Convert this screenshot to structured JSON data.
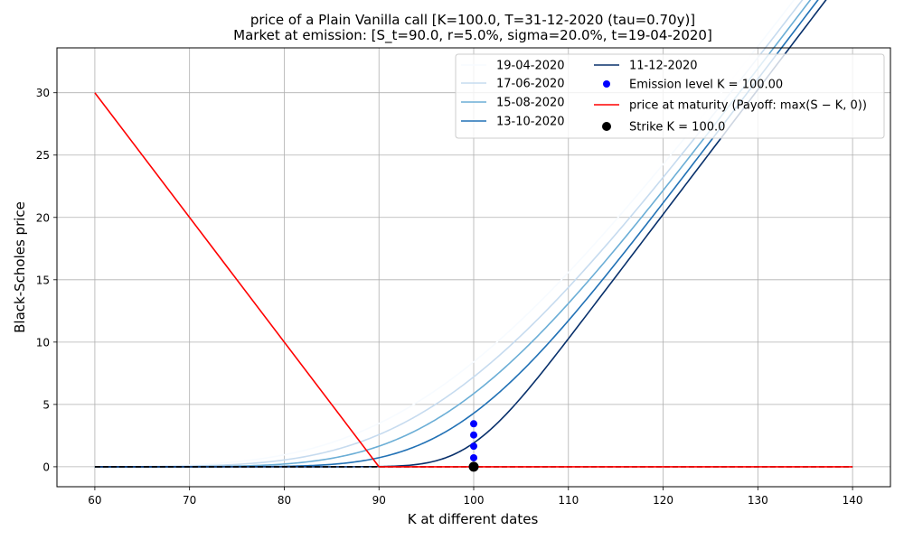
{
  "chart_data": {
    "type": "line",
    "title_line1": "price of a Plain Vanilla call [K=100.0, T=31-12-2020 (tau=0.70y)]",
    "title_line2": "Market at emission: [S_t=90.0, r=5.0%, sigma=20.0%, t=19-04-2020]",
    "xlabel": "K at different dates",
    "ylabel": "Black-Scholes price",
    "xlim": [
      56,
      144
    ],
    "ylim": [
      -1.6,
      33.6
    ],
    "xticks": [
      60,
      70,
      80,
      90,
      100,
      110,
      120,
      130,
      140
    ],
    "yticks": [
      0,
      5,
      10,
      15,
      20,
      25,
      30
    ],
    "grid": true,
    "legend_position": "top-right",
    "legend_columns": 2,
    "strike": 100.0,
    "rate": 0.05,
    "sigma": 0.2,
    "x_range": [
      60,
      140
    ],
    "series": [
      {
        "name": "19-04-2020",
        "tau": 0.7,
        "color": "#f7fbff"
      },
      {
        "name": "17-06-2020",
        "tau": 0.54,
        "color": "#c6dbef"
      },
      {
        "name": "15-08-2020",
        "tau": 0.38,
        "color": "#6baed6"
      },
      {
        "name": "13-10-2020",
        "tau": 0.22,
        "color": "#2171b5"
      },
      {
        "name": "11-12-2020",
        "tau": 0.05,
        "color": "#08306b"
      }
    ],
    "emission_points": {
      "name": "Emission level $K = 100.00$",
      "legend_label": "Emission level K = 100.00",
      "x": 100,
      "y": [
        3.45,
        2.55,
        1.65,
        0.72,
        0.02
      ],
      "color": "#0000ff"
    },
    "payoff": {
      "name": "price at maturity (Payoff: max(S − K, 0))",
      "legend_label": "price at maturity (Payoff: max(S − K, 0))",
      "x": [
        60,
        90,
        140
      ],
      "y": [
        30,
        0,
        0
      ],
      "color": "#ff0000"
    },
    "strike_point": {
      "legend_label": "Strike K = 100.0",
      "x": 100,
      "y": 0,
      "color": "#000000"
    },
    "zero_line": {
      "x": [
        60,
        140
      ],
      "y": [
        0,
        0
      ],
      "color": "#000000",
      "style": "dashed"
    }
  }
}
